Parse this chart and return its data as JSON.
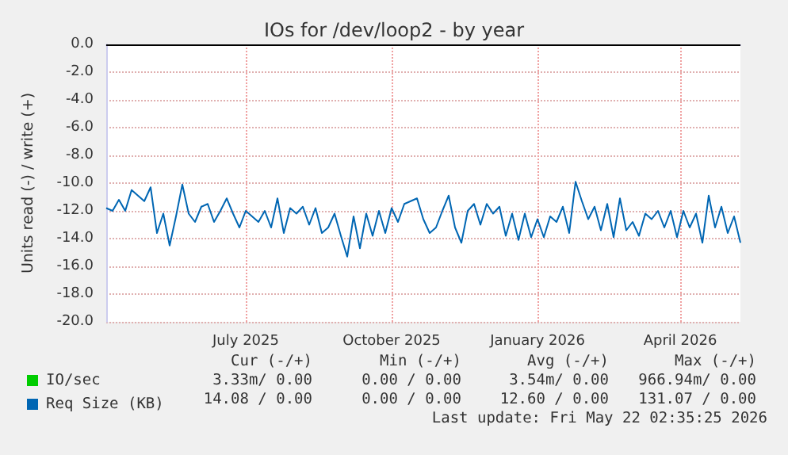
{
  "chart_data": {
    "type": "line",
    "title": "IOs for /dev/loop2 - by year",
    "ylabel": "Units read (-) / write (+)",
    "x": [
      "2025-04-04",
      "2025-04-08",
      "2025-04-12",
      "2025-04-16",
      "2025-04-20",
      "2025-04-24",
      "2025-04-28",
      "2025-05-02",
      "2025-05-06",
      "2025-05-10",
      "2025-05-14",
      "2025-05-18",
      "2025-05-22",
      "2025-05-26",
      "2025-05-30",
      "2025-06-03",
      "2025-06-07",
      "2025-06-11",
      "2025-06-15",
      "2025-06-19",
      "2025-06-23",
      "2025-06-27",
      "2025-07-01",
      "2025-07-05",
      "2025-07-09",
      "2025-07-13",
      "2025-07-17",
      "2025-07-21",
      "2025-07-25",
      "2025-07-29",
      "2025-08-02",
      "2025-08-06",
      "2025-08-10",
      "2025-08-14",
      "2025-08-18",
      "2025-08-22",
      "2025-08-26",
      "2025-08-30",
      "2025-09-03",
      "2025-09-07",
      "2025-09-11",
      "2025-09-15",
      "2025-09-19",
      "2025-09-23",
      "2025-09-27",
      "2025-10-01",
      "2025-10-05",
      "2025-10-09",
      "2025-10-13",
      "2025-10-17",
      "2025-10-21",
      "2025-10-25",
      "2025-10-29",
      "2025-11-02",
      "2025-11-06",
      "2025-11-10",
      "2025-11-14",
      "2025-11-18",
      "2025-11-22",
      "2025-11-26",
      "2025-11-30",
      "2025-12-04",
      "2025-12-08",
      "2025-12-12",
      "2025-12-16",
      "2025-12-20",
      "2025-12-24",
      "2025-12-28",
      "2026-01-01",
      "2026-01-05",
      "2026-01-09",
      "2026-01-13",
      "2026-01-17",
      "2026-01-21",
      "2026-01-25",
      "2026-01-29",
      "2026-02-02",
      "2026-02-06",
      "2026-02-10",
      "2026-02-14",
      "2026-02-18",
      "2026-02-22",
      "2026-02-26",
      "2026-03-02",
      "2026-03-06",
      "2026-03-10",
      "2026-03-14",
      "2026-03-18",
      "2026-03-22",
      "2026-03-26",
      "2026-03-30",
      "2026-04-03",
      "2026-04-07",
      "2026-04-11",
      "2026-04-15",
      "2026-04-19",
      "2026-04-23",
      "2026-04-27",
      "2026-05-01",
      "2026-05-05",
      "2026-05-09"
    ],
    "series": [
      {
        "name": "IO/sec",
        "color": "#00cc00",
        "values": [
          null,
          null,
          null,
          null,
          null,
          null,
          null,
          null,
          null,
          null,
          null,
          null,
          null,
          null,
          null,
          null,
          null,
          null,
          null,
          null,
          null,
          null,
          null,
          null,
          null,
          null,
          null,
          null,
          null,
          null,
          null,
          null,
          null,
          null,
          null,
          null,
          null,
          null,
          null,
          null,
          null,
          null,
          null,
          null,
          null,
          null,
          null,
          null,
          null,
          null,
          null,
          null,
          null,
          null,
          null,
          null,
          null,
          null,
          null,
          null,
          null,
          null,
          null,
          null,
          null,
          null,
          null,
          null,
          null,
          null,
          null,
          null,
          null,
          null,
          null,
          null,
          null,
          null,
          null,
          null,
          null,
          null,
          null,
          null,
          null,
          null,
          null,
          null,
          null,
          null,
          null,
          null,
          null,
          null,
          null,
          null,
          null,
          null,
          null,
          null,
          null
        ]
      },
      {
        "name": "Req Size (KB)",
        "color": "#0066b3",
        "values": [
          -11.8,
          -12.0,
          -11.2,
          -12.0,
          -10.5,
          -10.9,
          -11.3,
          -10.3,
          -13.6,
          -12.2,
          -14.5,
          -12.4,
          -10.1,
          -12.2,
          -12.8,
          -11.7,
          -11.5,
          -12.8,
          -12.0,
          -11.1,
          -12.2,
          -13.2,
          -12.0,
          -12.4,
          -12.8,
          -12.0,
          -13.2,
          -11.1,
          -13.6,
          -11.8,
          -12.2,
          -11.7,
          -13.0,
          -11.8,
          -13.6,
          -13.2,
          -12.2,
          -13.8,
          -15.3,
          -12.4,
          -14.7,
          -12.2,
          -13.8,
          -12.0,
          -13.6,
          -11.8,
          -12.8,
          -11.5,
          -11.3,
          -11.1,
          -12.6,
          -13.6,
          -13.2,
          -12.0,
          -10.9,
          -13.2,
          -14.3,
          -12.0,
          -11.5,
          -13.0,
          -11.5,
          -12.2,
          -11.7,
          -13.8,
          -12.2,
          -14.1,
          -12.2,
          -13.9,
          -12.6,
          -13.9,
          -12.4,
          -12.8,
          -11.7,
          -13.6,
          -9.9,
          -11.3,
          -12.6,
          -11.7,
          -13.4,
          -11.5,
          -13.9,
          -11.1,
          -13.4,
          -12.8,
          -13.8,
          -12.2,
          -12.6,
          -12.0,
          -13.2,
          -12.0,
          -13.9,
          -12.0,
          -13.2,
          -12.2,
          -14.3,
          -10.9,
          -13.2,
          -11.7,
          -13.6,
          -12.4,
          -14.3
        ]
      }
    ],
    "xlim": [
      "2025-04-04",
      "2026-05-09"
    ],
    "xticks": [
      {
        "value": "2025-07-01",
        "label": "July 2025"
      },
      {
        "value": "2025-10-01",
        "label": "October 2025"
      },
      {
        "value": "2026-01-01",
        "label": "January 2026"
      },
      {
        "value": "2026-04-01",
        "label": "April 2026"
      }
    ],
    "ylim": [
      -20,
      0
    ],
    "yticks": [
      {
        "value": 0,
        "label": "0.0"
      },
      {
        "value": -2,
        "label": "-2.0"
      },
      {
        "value": -4,
        "label": "-4.0"
      },
      {
        "value": -6,
        "label": "-6.0"
      },
      {
        "value": -8,
        "label": "-8.0"
      },
      {
        "value": -10,
        "label": "-10.0"
      },
      {
        "value": -12,
        "label": "-12.0"
      },
      {
        "value": -14,
        "label": "-14.0"
      },
      {
        "value": -16,
        "label": "-16.0"
      },
      {
        "value": -18,
        "label": "-18.0"
      },
      {
        "value": -20,
        "label": "-20.0"
      }
    ],
    "ref_lines": [
      {
        "axis": "y",
        "value": 0,
        "color": "#000000"
      }
    ],
    "grid": true,
    "legend": "bottom left",
    "annotations": [
      "Cur (-/+)",
      "Min (-/+)",
      "Avg (-/+)",
      "Max (-/+)",
      "3.33m/ 0.00",
      "0.00 / 0.00",
      "3.54m/ 0.00",
      "966.94m/ 0.00",
      "14.08 / 0.00",
      "0.00 / 0.00",
      "12.60 / 0.00",
      "131.07 / 0.00",
      "Last update: Fri May 22 02:35:25 2026"
    ]
  }
}
